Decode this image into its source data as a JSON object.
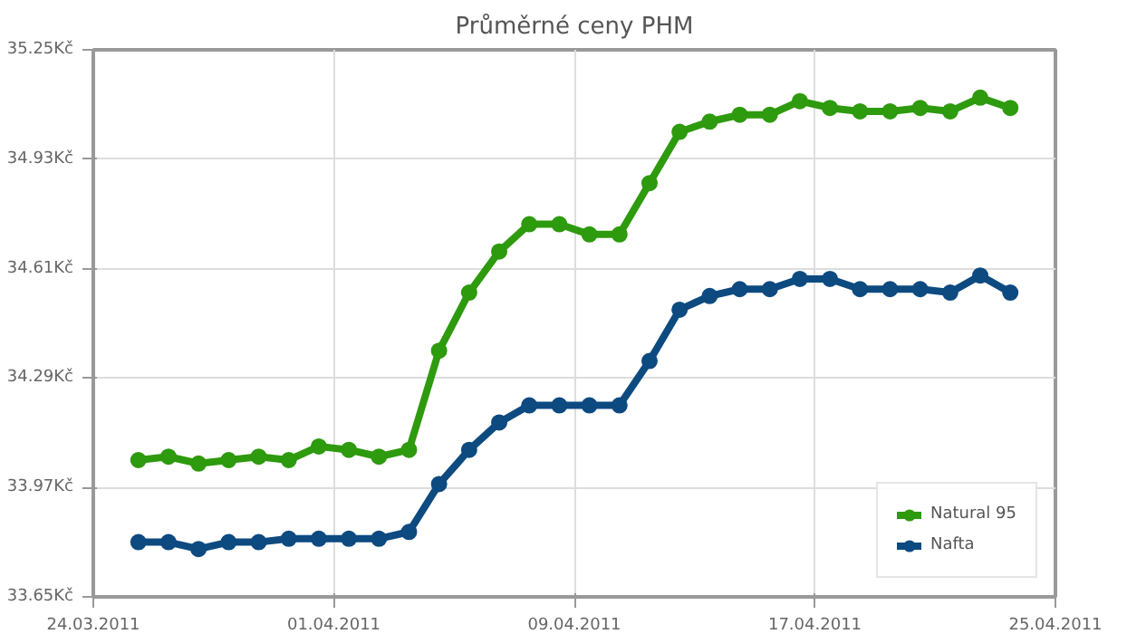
{
  "chart_data": {
    "type": "line",
    "title": "Průměrné ceny PHM",
    "x": [
      "2011-03-25T12:00",
      "2011-03-26T12:00",
      "2011-03-27T12:00",
      "2011-03-28T12:00",
      "2011-03-29T12:00",
      "2011-03-30T12:00",
      "2011-03-31T12:00",
      "2011-04-01T12:00",
      "2011-04-02T12:00",
      "2011-04-03T12:00",
      "2011-04-04T12:00",
      "2011-04-05T12:00",
      "2011-04-06T12:00",
      "2011-04-07T12:00",
      "2011-04-08T12:00",
      "2011-04-09T12:00",
      "2011-04-10T12:00",
      "2011-04-11T12:00",
      "2011-04-12T12:00",
      "2011-04-13T12:00",
      "2011-04-14T12:00",
      "2011-04-15T12:00",
      "2011-04-16T12:00",
      "2011-04-17T12:00",
      "2011-04-18T12:00",
      "2011-04-19T12:00",
      "2011-04-20T12:00",
      "2011-04-21T12:00",
      "2011-04-22T12:00",
      "2011-04-23T12:00"
    ],
    "series": [
      {
        "name": "Natural 95",
        "color": "#2e9a0e",
        "values": [
          34.05,
          34.06,
          34.04,
          34.05,
          34.06,
          34.05,
          34.09,
          34.08,
          34.06,
          34.08,
          34.37,
          34.54,
          34.66,
          34.74,
          34.74,
          34.71,
          34.71,
          34.86,
          35.01,
          35.04,
          35.06,
          35.06,
          35.1,
          35.08,
          35.07,
          35.07,
          35.08,
          35.07,
          35.11,
          35.08
        ]
      },
      {
        "name": "Nafta",
        "color": "#0d4a80",
        "values": [
          33.81,
          33.81,
          33.79,
          33.81,
          33.81,
          33.82,
          33.82,
          33.82,
          33.82,
          33.84,
          33.98,
          34.08,
          34.16,
          34.21,
          34.21,
          34.21,
          34.21,
          34.34,
          34.49,
          34.53,
          34.55,
          34.55,
          34.58,
          34.58,
          34.55,
          34.55,
          34.55,
          34.54,
          34.59,
          34.54
        ]
      }
    ],
    "xlim": [
      "2011-03-24",
      "2011-04-25"
    ],
    "xticks": [
      {
        "value": "2011-03-24",
        "label": "24.03.2011"
      },
      {
        "value": "2011-04-01",
        "label": "01.04.2011"
      },
      {
        "value": "2011-04-09",
        "label": "09.04.2011"
      },
      {
        "value": "2011-04-17",
        "label": "17.04.2011"
      },
      {
        "value": "2011-04-25",
        "label": "25.04.2011"
      }
    ],
    "ylim": [
      33.65,
      35.25
    ],
    "yticks": [
      {
        "value": 33.65,
        "label": "33.65Kč"
      },
      {
        "value": 33.97,
        "label": "33.97Kč"
      },
      {
        "value": 34.29,
        "label": "34.29Kč"
      },
      {
        "value": 34.61,
        "label": "34.61Kč"
      },
      {
        "value": 34.93,
        "label": "34.93Kč"
      },
      {
        "value": 35.25,
        "label": "35.25Kč"
      }
    ],
    "grid": true,
    "legend": "bottom right",
    "marker": "circle",
    "line_style": "solid"
  }
}
